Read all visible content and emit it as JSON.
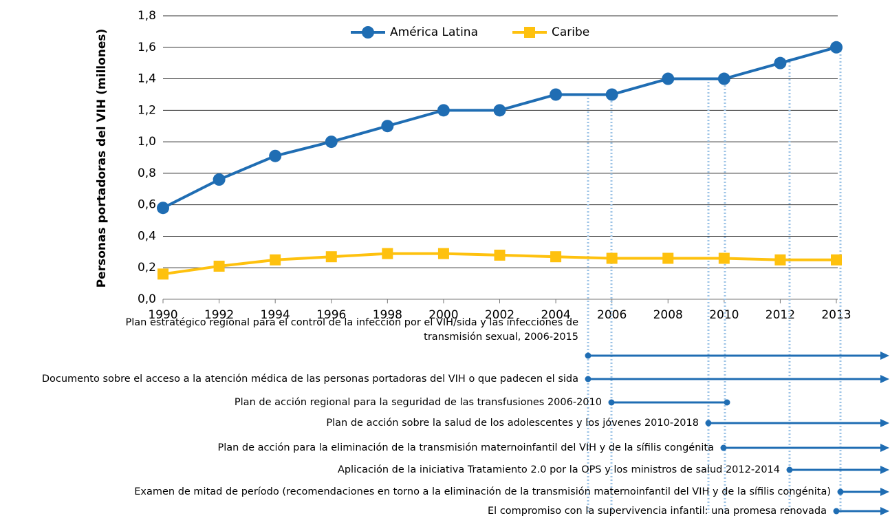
{
  "chart_data": {
    "type": "line",
    "y_label": "Personas portadoras del VIH (millones)",
    "categories": [
      "1990",
      "1992",
      "1994",
      "1996",
      "1998",
      "2000",
      "2002",
      "2004",
      "2006",
      "2008",
      "2010",
      "2012",
      "2013"
    ],
    "series": [
      {
        "name": "América Latina",
        "color": "#1f6db3",
        "marker": "circle",
        "values": [
          0.58,
          0.76,
          0.91,
          1.0,
          1.1,
          1.2,
          1.2,
          1.3,
          1.3,
          1.4,
          1.4,
          1.5,
          1.6
        ]
      },
      {
        "name": "Caribe",
        "color": "#fec10e",
        "marker": "square",
        "values": [
          0.16,
          0.21,
          0.25,
          0.27,
          0.29,
          0.29,
          0.28,
          0.27,
          0.26,
          0.26,
          0.26,
          0.25,
          0.25
        ]
      }
    ],
    "ylim": [
      0,
      1.8
    ],
    "yticks": [
      {
        "value": 0,
        "label": "0,0"
      },
      {
        "value": 0.2,
        "label": "0,2"
      },
      {
        "value": 0.4,
        "label": "0,4"
      },
      {
        "value": 0.6,
        "label": "0,6"
      },
      {
        "value": 0.8,
        "label": "0,8"
      },
      {
        "value": 1.0,
        "label": "1,0"
      },
      {
        "value": 1.2,
        "label": "1,2"
      },
      {
        "value": 1.4,
        "label": "1,4"
      },
      {
        "value": 1.6,
        "label": "1,6"
      },
      {
        "value": 1.8,
        "label": "1,8"
      }
    ],
    "grid": true,
    "legend": "top"
  },
  "timeline": [
    [
      "Plan estratégico regional para el control de la infección por el VIH/sida y las infecciones de",
      "transmisión sexual, 2006-2015"
    ],
    [
      "Documento sobre el acceso a la atención médica de las personas portadoras del VIH o que padecen el sida"
    ],
    [
      "Plan de acción regional para la seguridad de las transfusiones 2006-2010"
    ],
    [
      "Plan de acción sobre la salud de los adolescentes y los jóvenes 2010-2018"
    ],
    [
      "Plan de acción para la eliminación de la transmisión maternoinfantil del VIH y de la sífilis congénita"
    ],
    [
      "Aplicación de la iniciativa Tratamiento 2.0 por la OPS y los ministros de salud 2012-2014"
    ],
    [
      "Examen de mitad de período (recomendaciones en torno a la eliminación de la transmisión maternoinfantil del VIH y de la sífilis congénita)"
    ],
    [
      "El compromiso con la supervivencia infantil: una promesa renovada"
    ]
  ]
}
